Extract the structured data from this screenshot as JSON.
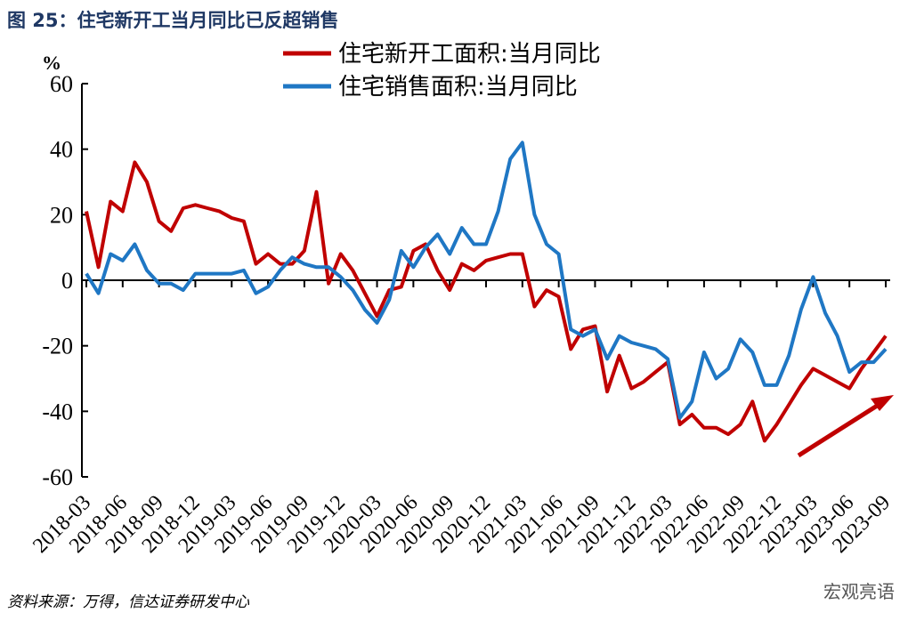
{
  "chart_data": {
    "type": "line",
    "title": "图 25：住宅新开工当月同比已反超销售",
    "y_label": "%",
    "source": "资料来源：万得，信达证券研发中心",
    "watermark": "宏观亮语",
    "categories": [
      "2018-03",
      null,
      null,
      "2018-06",
      null,
      null,
      "2018-09",
      null,
      null,
      "2018-12",
      null,
      null,
      "2019-03",
      null,
      null,
      "2019-06",
      null,
      null,
      "2019-09",
      null,
      null,
      "2019-12",
      null,
      null,
      "2020-03",
      null,
      null,
      "2020-06",
      null,
      null,
      "2020-09",
      null,
      null,
      "2020-12",
      null,
      null,
      "2021-03",
      null,
      null,
      "2021-06",
      null,
      null,
      "2021-09",
      null,
      null,
      "2021-12",
      null,
      null,
      "2022-03",
      null,
      null,
      "2022-06",
      null,
      null,
      "2022-09",
      null,
      null,
      "2022-12",
      null,
      null,
      "2023-03",
      null,
      null,
      "2023-06",
      null,
      null,
      "2023-09"
    ],
    "series": [
      {
        "name": "住宅新开工面积:当月同比",
        "color": "#c00000",
        "values": [
          21,
          4,
          24,
          21,
          36,
          30,
          18,
          15,
          22,
          23,
          22,
          21,
          19,
          18,
          5,
          8,
          5,
          5,
          9,
          27,
          -1,
          8,
          3,
          -4,
          -11,
          -3,
          -2,
          9,
          11,
          3,
          -3,
          5,
          3,
          6,
          7,
          8,
          8,
          -8,
          -3,
          -5,
          -21,
          -15,
          -14,
          -34,
          -23,
          -33,
          -31,
          -28,
          -25,
          -44,
          -41,
          -45,
          -45,
          -47,
          -44,
          -37,
          -49,
          -44,
          -38,
          -32,
          -27,
          -29,
          -31,
          -33,
          -27,
          -22,
          -17
        ]
      },
      {
        "name": "住宅销售面积:当月同比",
        "color": "#1f77c4",
        "values": [
          2,
          -4,
          8,
          6,
          11,
          3,
          -1,
          -1,
          -3,
          2,
          2,
          2,
          2,
          3,
          -4,
          -2,
          3,
          7,
          5,
          4,
          4,
          1,
          -3,
          -9,
          -13,
          -6,
          9,
          4,
          10,
          14,
          8,
          16,
          11,
          11,
          21,
          37,
          42,
          20,
          11,
          8,
          -15,
          -17,
          -15,
          -24,
          -17,
          -19,
          -20,
          -21,
          -24,
          -42,
          -37,
          -22,
          -30,
          -27,
          -18,
          -22,
          -32,
          -32,
          -23,
          -9,
          1,
          -10,
          -17,
          -28,
          -25,
          -25,
          -21
        ]
      }
    ],
    "ylim": [
      -60,
      60
    ],
    "yticks": [
      -60,
      -40,
      -20,
      0,
      20,
      40,
      60
    ]
  }
}
